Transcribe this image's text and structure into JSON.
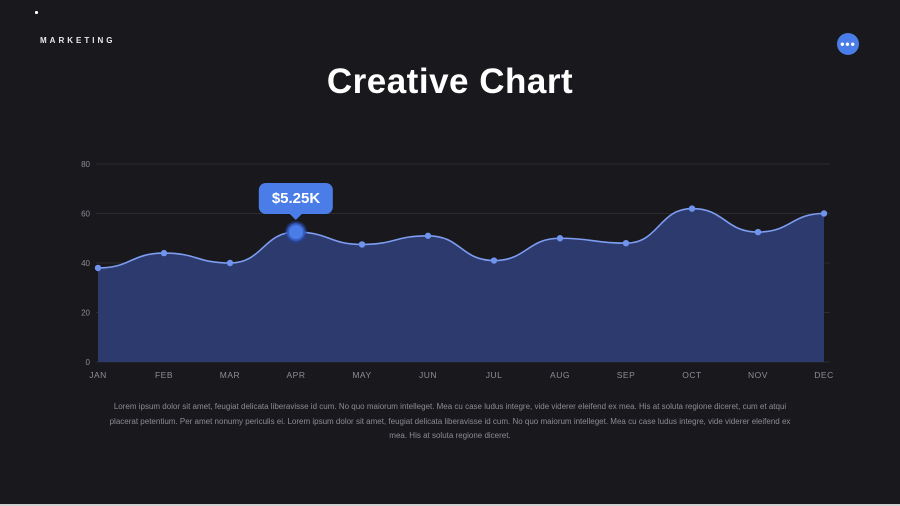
{
  "brand": {
    "label": "MARKETING"
  },
  "header": {
    "title": "Creative Chart",
    "menu_label": "•••"
  },
  "chart_data": {
    "type": "area",
    "title": "Creative Chart",
    "categories": [
      "JAN",
      "FEB",
      "MAR",
      "APR",
      "MAY",
      "JUN",
      "JUL",
      "AUG",
      "SEP",
      "OCT",
      "NOV",
      "DEC"
    ],
    "values": [
      38,
      44,
      40,
      52.5,
      47.5,
      51,
      41,
      50,
      48,
      62,
      52.5,
      60
    ],
    "ylim": [
      0,
      80
    ],
    "yticks": [
      0,
      20,
      40,
      60,
      80
    ],
    "grid": true,
    "legend": false,
    "highlight": {
      "index": 3,
      "label": "$5.25K"
    },
    "colors": {
      "accent": "#4a7de8",
      "line": "#7d9df0",
      "fill": "#2d3a6e",
      "point": "#6f94ee",
      "grid": "rgba(255,255,255,0.08)",
      "axis_text": "#8d8d95"
    }
  },
  "footer": {
    "lines": [
      "Lorem ipsum dolor sit amet, feugiat delicata liberavisse id cum. No quo maiorum intelleget. Mea cu case ludus integre, vide viderer eleifend ex mea. His at soluta regione diceret, cum et atqui",
      "placerat petentium. Per amet nonumy periculis ei. Lorem ipsum dolor sit amet, feugiat delicata liberavisse id cum. No quo maiorum intelleget. Mea cu case ludus integre, vide viderer eleifend ex",
      "mea. His at soluta regione diceret."
    ]
  }
}
